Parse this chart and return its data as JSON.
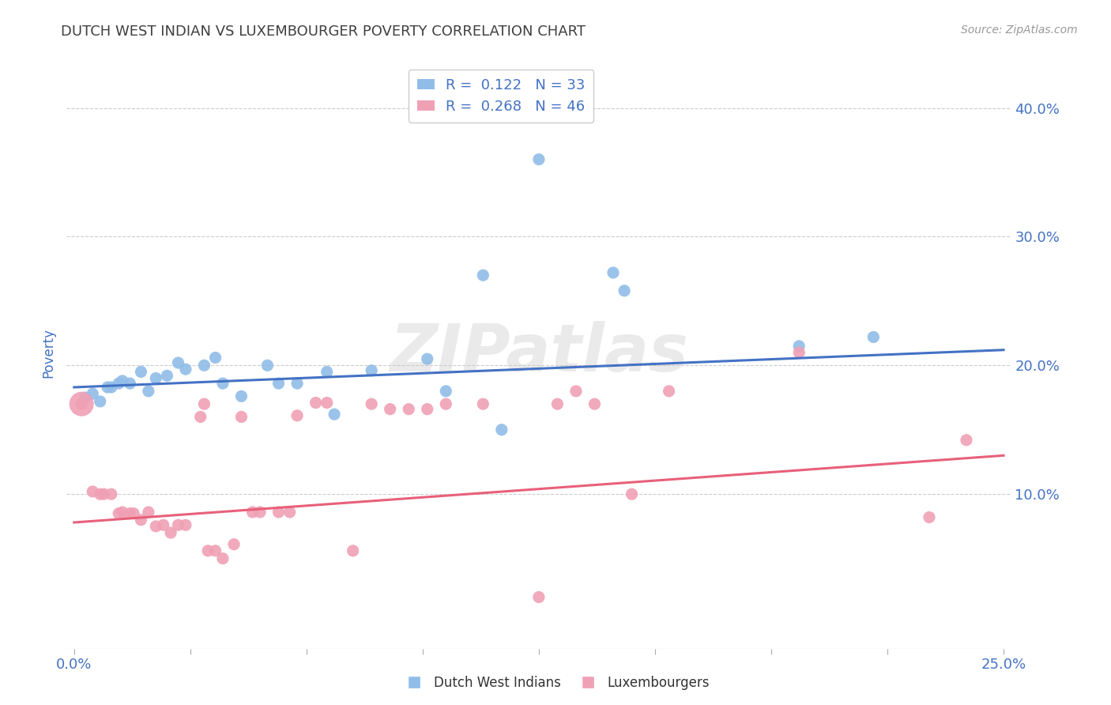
{
  "title": "DUTCH WEST INDIAN VS LUXEMBOURGER POVERTY CORRELATION CHART",
  "source": "Source: ZipAtlas.com",
  "ylabel": "Poverty",
  "xlabel_ticks_shown": [
    "0.0%",
    "25.0%"
  ],
  "xlabel_ticks_pos": [
    0.0,
    0.25
  ],
  "xlabel_minor_ticks": [
    0.0,
    0.03125,
    0.0625,
    0.09375,
    0.125,
    0.15625,
    0.1875,
    0.21875,
    0.25
  ],
  "ylabel_ticks": [
    "10.0%",
    "20.0%",
    "30.0%",
    "40.0%"
  ],
  "ylabel_vals": [
    0.1,
    0.2,
    0.3,
    0.4
  ],
  "xlim": [
    -0.002,
    0.252
  ],
  "ylim": [
    -0.02,
    0.44
  ],
  "watermark": "ZIPatlas",
  "blue_R": 0.122,
  "blue_N": 33,
  "pink_R": 0.268,
  "pink_N": 46,
  "blue_color": "#90BDE8",
  "pink_color": "#F0A0B5",
  "blue_line_color": "#4472C4",
  "pink_line_color": "#E8607A",
  "blue_scatter": [
    [
      0.003,
      0.175
    ],
    [
      0.005,
      0.178
    ],
    [
      0.007,
      0.172
    ],
    [
      0.009,
      0.183
    ],
    [
      0.01,
      0.183
    ],
    [
      0.012,
      0.186
    ],
    [
      0.013,
      0.188
    ],
    [
      0.015,
      0.186
    ],
    [
      0.018,
      0.195
    ],
    [
      0.02,
      0.18
    ],
    [
      0.022,
      0.19
    ],
    [
      0.025,
      0.192
    ],
    [
      0.028,
      0.202
    ],
    [
      0.03,
      0.197
    ],
    [
      0.035,
      0.2
    ],
    [
      0.038,
      0.206
    ],
    [
      0.04,
      0.186
    ],
    [
      0.045,
      0.176
    ],
    [
      0.052,
      0.2
    ],
    [
      0.055,
      0.186
    ],
    [
      0.06,
      0.186
    ],
    [
      0.068,
      0.195
    ],
    [
      0.07,
      0.162
    ],
    [
      0.08,
      0.196
    ],
    [
      0.095,
      0.205
    ],
    [
      0.1,
      0.18
    ],
    [
      0.11,
      0.27
    ],
    [
      0.115,
      0.15
    ],
    [
      0.125,
      0.36
    ],
    [
      0.145,
      0.272
    ],
    [
      0.148,
      0.258
    ],
    [
      0.195,
      0.215
    ],
    [
      0.215,
      0.222
    ]
  ],
  "pink_scatter": [
    [
      0.002,
      0.17
    ],
    [
      0.005,
      0.102
    ],
    [
      0.007,
      0.1
    ],
    [
      0.008,
      0.1
    ],
    [
      0.01,
      0.1
    ],
    [
      0.012,
      0.085
    ],
    [
      0.013,
      0.086
    ],
    [
      0.015,
      0.085
    ],
    [
      0.016,
      0.085
    ],
    [
      0.018,
      0.08
    ],
    [
      0.02,
      0.086
    ],
    [
      0.022,
      0.075
    ],
    [
      0.024,
      0.076
    ],
    [
      0.026,
      0.07
    ],
    [
      0.028,
      0.076
    ],
    [
      0.03,
      0.076
    ],
    [
      0.034,
      0.16
    ],
    [
      0.035,
      0.17
    ],
    [
      0.036,
      0.056
    ],
    [
      0.038,
      0.056
    ],
    [
      0.04,
      0.05
    ],
    [
      0.043,
      0.061
    ],
    [
      0.045,
      0.16
    ],
    [
      0.048,
      0.086
    ],
    [
      0.05,
      0.086
    ],
    [
      0.055,
      0.086
    ],
    [
      0.058,
      0.086
    ],
    [
      0.06,
      0.161
    ],
    [
      0.065,
      0.171
    ],
    [
      0.068,
      0.171
    ],
    [
      0.075,
      0.056
    ],
    [
      0.08,
      0.17
    ],
    [
      0.085,
      0.166
    ],
    [
      0.09,
      0.166
    ],
    [
      0.095,
      0.166
    ],
    [
      0.1,
      0.17
    ],
    [
      0.11,
      0.17
    ],
    [
      0.125,
      0.02
    ],
    [
      0.13,
      0.17
    ],
    [
      0.135,
      0.18
    ],
    [
      0.14,
      0.17
    ],
    [
      0.15,
      0.1
    ],
    [
      0.16,
      0.18
    ],
    [
      0.195,
      0.21
    ],
    [
      0.23,
      0.082
    ],
    [
      0.24,
      0.142
    ]
  ],
  "blue_line_x": [
    0.0,
    0.25
  ],
  "blue_line_y": [
    0.183,
    0.212
  ],
  "pink_line_x": [
    0.0,
    0.25
  ],
  "pink_line_y": [
    0.078,
    0.13
  ],
  "background_color": "#FFFFFF",
  "grid_color": "#CCCCCC",
  "title_color": "#404040",
  "axis_label_color": "#4472C4",
  "legend_label_color": "#4472C4",
  "ylabel_color": "#4472C4"
}
